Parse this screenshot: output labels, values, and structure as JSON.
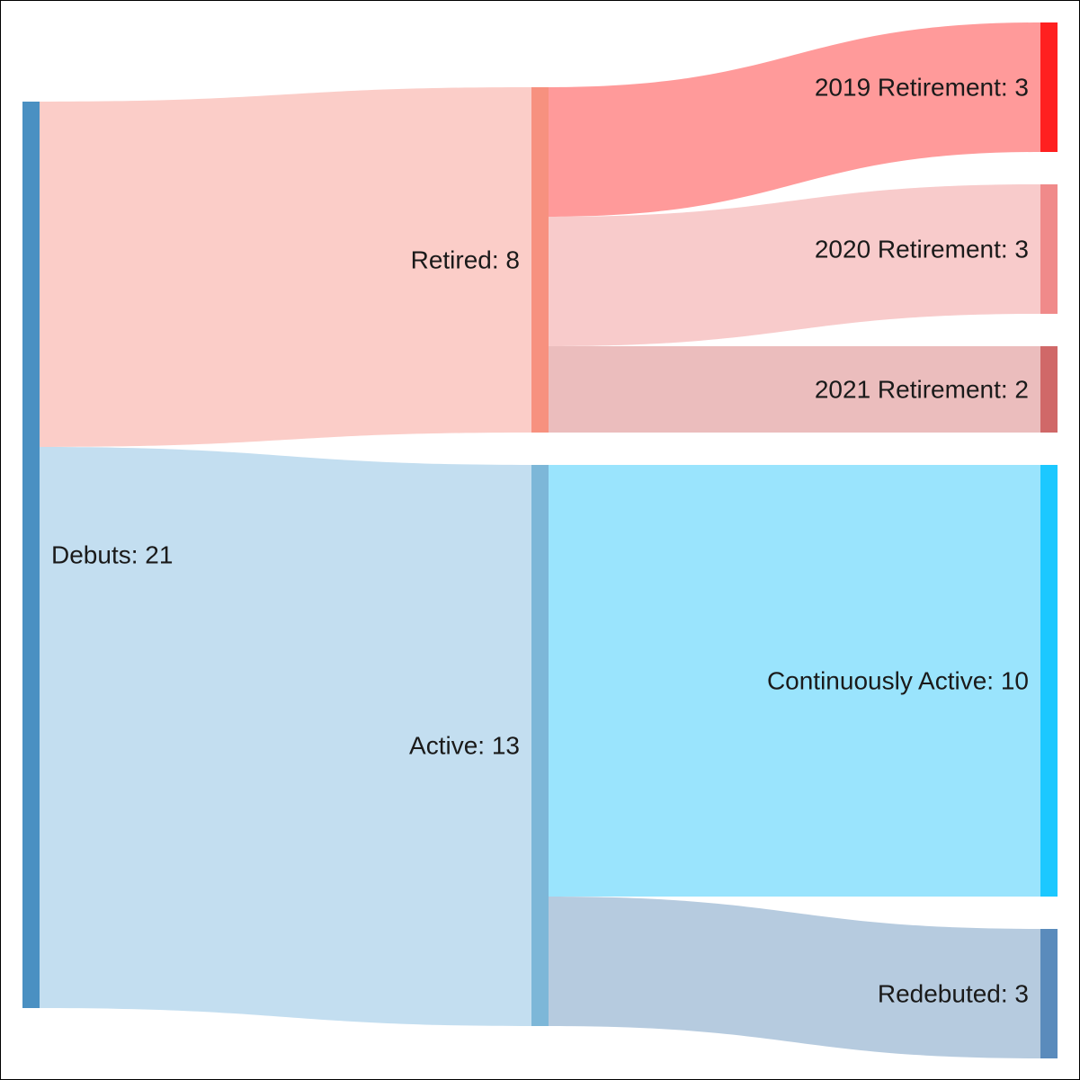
{
  "chart_data": {
    "type": "sankey",
    "nodes": [
      {
        "id": "debuts",
        "label": "Debuts: 21",
        "color": "#4a90c2"
      },
      {
        "id": "retired",
        "label": "Retired: 8",
        "color": "#f7917f"
      },
      {
        "id": "active",
        "label": "Active: 13",
        "color": "#7db7d8"
      },
      {
        "id": "r2019",
        "label": "2019 Retirement: 3",
        "color": "#ff2020"
      },
      {
        "id": "r2020",
        "label": "2020 Retirement: 3",
        "color": "#f08a8a"
      },
      {
        "id": "r2021",
        "label": "2021 Retirement: 2",
        "color": "#d06868"
      },
      {
        "id": "continuous",
        "label": "Continuously Active: 10",
        "color": "#1cc8ff"
      },
      {
        "id": "redebuted",
        "label": "Redebuted: 3",
        "color": "#5a8bbc"
      }
    ],
    "links": [
      {
        "source": "debuts",
        "target": "retired",
        "value": 8,
        "color": "#fbcdc8"
      },
      {
        "source": "debuts",
        "target": "active",
        "value": 13,
        "color": "#c3def0"
      },
      {
        "source": "retired",
        "target": "r2019",
        "value": 3,
        "color": "#ff9a9a"
      },
      {
        "source": "retired",
        "target": "r2020",
        "value": 3,
        "color": "#f8cbcb"
      },
      {
        "source": "retired",
        "target": "r2021",
        "value": 2,
        "color": "#ebbdbd"
      },
      {
        "source": "active",
        "target": "continuous",
        "value": 10,
        "color": "#9ae4fd"
      },
      {
        "source": "active",
        "target": "redebuted",
        "value": 3,
        "color": "#b6cbdf"
      }
    ]
  }
}
